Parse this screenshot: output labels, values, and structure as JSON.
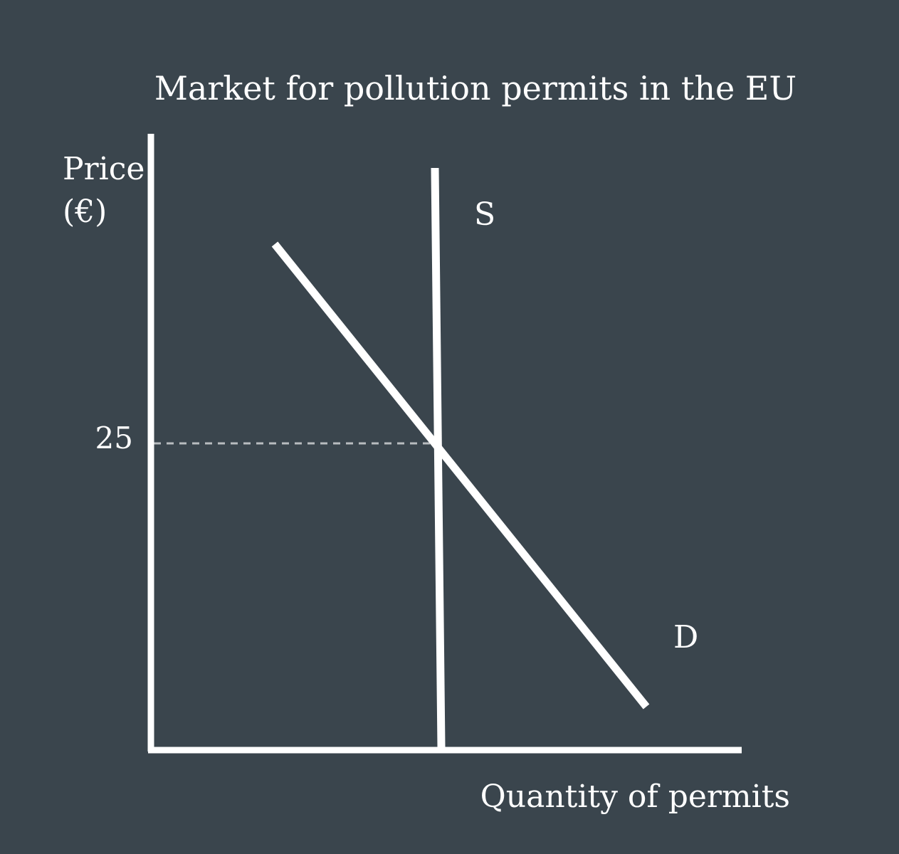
{
  "title": "Market for pollution permits in the EU",
  "y_axis": {
    "label_line1": "Price",
    "label_line2": "(€)"
  },
  "x_axis": {
    "label": "Quantity of permits"
  },
  "curves": {
    "supply_label": "S",
    "demand_label": "D"
  },
  "equilibrium": {
    "price_label": "25"
  },
  "colors": {
    "background": "#3a454d",
    "lines": "#ffffff",
    "dashed": "#b8bcbf"
  }
}
